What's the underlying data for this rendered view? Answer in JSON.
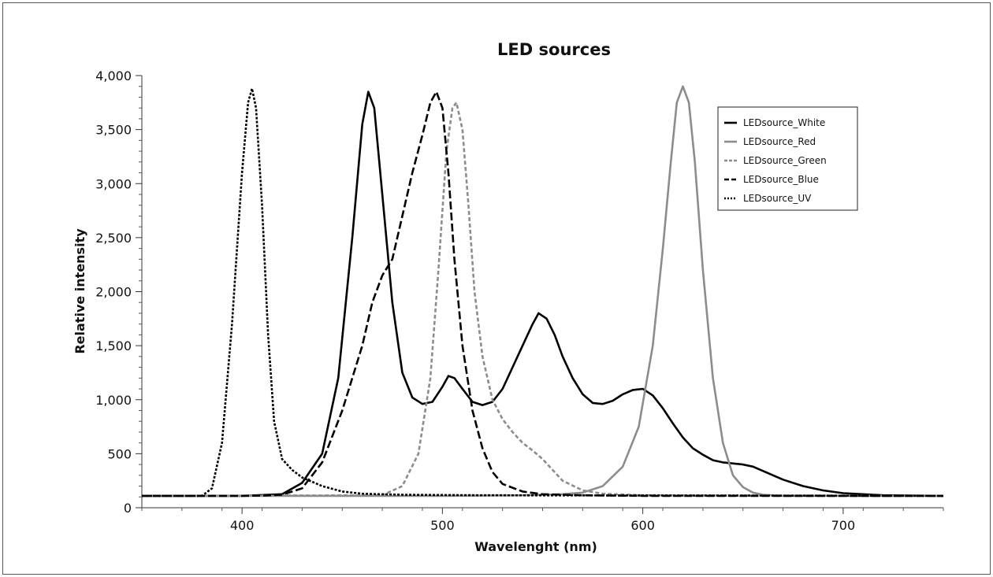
{
  "chart_data": {
    "type": "line",
    "title": "LED sources",
    "xlabel": "Wavelenght (nm)",
    "ylabel": "Relative intensity",
    "xlim": [
      350,
      750
    ],
    "ylim": [
      0,
      4000
    ],
    "x_ticks": [
      400,
      500,
      600,
      700
    ],
    "x_tick_labels": [
      "400",
      "500",
      "600",
      "700"
    ],
    "y_ticks": [
      0,
      500,
      1000,
      1500,
      2000,
      2500,
      3000,
      3500,
      4000
    ],
    "y_tick_labels": [
      "0",
      "500",
      "1,000",
      "1,500",
      "2,000",
      "2,500",
      "3,000",
      "3,500",
      "4,000"
    ],
    "grid": false,
    "legend_position": "top-right",
    "series": [
      {
        "name": "LEDsource_White",
        "color": "#000000",
        "dash": "solid",
        "x": [
          350,
          400,
          420,
          430,
          440,
          448,
          455,
          460,
          463,
          466,
          470,
          475,
          480,
          485,
          490,
          495,
          500,
          503,
          506,
          510,
          515,
          520,
          525,
          530,
          535,
          540,
          545,
          548,
          552,
          556,
          560,
          565,
          570,
          575,
          580,
          585,
          590,
          595,
          600,
          605,
          610,
          615,
          620,
          625,
          630,
          635,
          640,
          650,
          655,
          660,
          670,
          680,
          690,
          700,
          720,
          750
        ],
        "y": [
          110,
          110,
          125,
          230,
          500,
          1200,
          2500,
          3550,
          3850,
          3700,
          2900,
          1900,
          1250,
          1020,
          960,
          980,
          1120,
          1220,
          1200,
          1100,
          980,
          950,
          980,
          1100,
          1300,
          1500,
          1700,
          1800,
          1750,
          1600,
          1400,
          1200,
          1050,
          970,
          960,
          990,
          1050,
          1090,
          1100,
          1040,
          920,
          780,
          650,
          550,
          490,
          440,
          420,
          400,
          380,
          340,
          260,
          200,
          160,
          135,
          115,
          110
        ]
      },
      {
        "name": "LEDsource_Red",
        "color": "#8c8c8c",
        "dash": "solid",
        "x": [
          350,
          500,
          540,
          560,
          570,
          580,
          590,
          598,
          605,
          610,
          614,
          617,
          620,
          623,
          626,
          630,
          635,
          640,
          645,
          650,
          655,
          660,
          670,
          750
        ],
        "y": [
          110,
          110,
          115,
          125,
          140,
          200,
          380,
          750,
          1500,
          2400,
          3200,
          3750,
          3900,
          3750,
          3200,
          2200,
          1200,
          600,
          300,
          190,
          140,
          120,
          110,
          110
        ]
      },
      {
        "name": "LEDsource_Green",
        "color": "#8c8c8c",
        "dash": "short",
        "x": [
          350,
          470,
          480,
          488,
          494,
          498,
          502,
          505,
          507,
          510,
          513,
          516,
          520,
          525,
          530,
          535,
          540,
          545,
          550,
          555,
          560,
          570,
          580,
          600,
          750
        ],
        "y": [
          110,
          115,
          200,
          500,
          1200,
          2200,
          3300,
          3700,
          3750,
          3500,
          2800,
          2000,
          1400,
          1000,
          820,
          700,
          600,
          530,
          450,
          350,
          250,
          160,
          130,
          115,
          110
        ]
      },
      {
        "name": "LEDsource_Blue",
        "color": "#000000",
        "dash": "long",
        "x": [
          350,
          400,
          410,
          420,
          430,
          440,
          450,
          460,
          465,
          470,
          475,
          480,
          485,
          490,
          494,
          497,
          500,
          503,
          506,
          510,
          515,
          520,
          525,
          530,
          540,
          550,
          570,
          600,
          750
        ],
        "y": [
          110,
          110,
          112,
          120,
          180,
          420,
          900,
          1500,
          1900,
          2150,
          2300,
          2700,
          3100,
          3450,
          3750,
          3850,
          3700,
          3100,
          2300,
          1500,
          900,
          550,
          330,
          220,
          150,
          125,
          115,
          110,
          110
        ]
      },
      {
        "name": "LEDsource_UV",
        "color": "#000000",
        "dash": "dotted",
        "x": [
          350,
          380,
          385,
          390,
          395,
          400,
          403,
          405,
          407,
          410,
          413,
          416,
          420,
          425,
          430,
          440,
          450,
          460,
          480,
          520,
          750
        ],
        "y": [
          110,
          110,
          180,
          600,
          1700,
          3100,
          3750,
          3880,
          3700,
          2800,
          1600,
          800,
          450,
          350,
          280,
          200,
          150,
          130,
          120,
          115,
          110
        ]
      }
    ]
  }
}
